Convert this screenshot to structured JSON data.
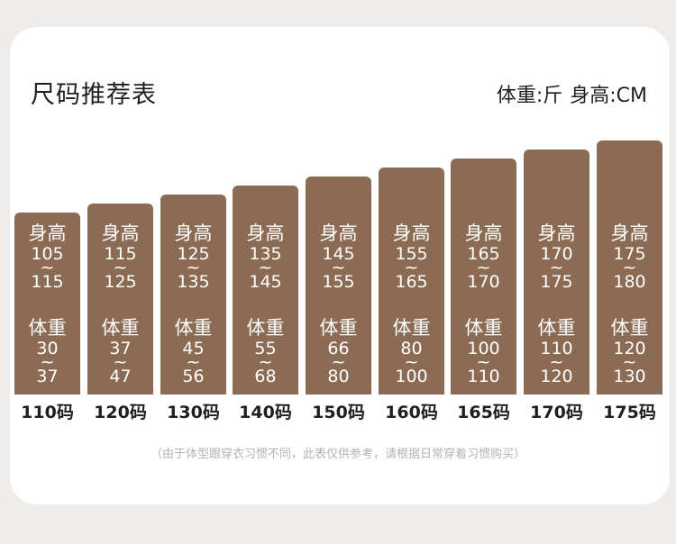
{
  "title": "尺码推荐表",
  "units": {
    "weight": "体重:斤",
    "height": "身高:CM"
  },
  "height_label": "身高",
  "weight_label": "体重",
  "tilde": "~",
  "sizes": [
    {
      "size": "110码",
      "height_min": "105",
      "height_max": "115",
      "weight_min": "30",
      "weight_max": "37"
    },
    {
      "size": "120码",
      "height_min": "115",
      "height_max": "125",
      "weight_min": "37",
      "weight_max": "47"
    },
    {
      "size": "130码",
      "height_min": "125",
      "height_max": "135",
      "weight_min": "45",
      "weight_max": "56"
    },
    {
      "size": "140码",
      "height_min": "135",
      "height_max": "145",
      "weight_min": "55",
      "weight_max": "68"
    },
    {
      "size": "150码",
      "height_min": "145",
      "height_max": "155",
      "weight_min": "66",
      "weight_max": "80"
    },
    {
      "size": "160码",
      "height_min": "155",
      "height_max": "165",
      "weight_min": "80",
      "weight_max": "100"
    },
    {
      "size": "165码",
      "height_min": "165",
      "height_max": "170",
      "weight_min": "100",
      "weight_max": "110"
    },
    {
      "size": "170码",
      "height_min": "170",
      "height_max": "175",
      "weight_min": "110",
      "weight_max": "120"
    },
    {
      "size": "175码",
      "height_min": "175",
      "height_max": "180",
      "weight_min": "120",
      "weight_max": "130"
    }
  ],
  "bar_color": "#8b6b53",
  "note": "（由于体型跟穿衣习惯不同，此表仅供参考，请根据日常穿着习惯购买）"
}
